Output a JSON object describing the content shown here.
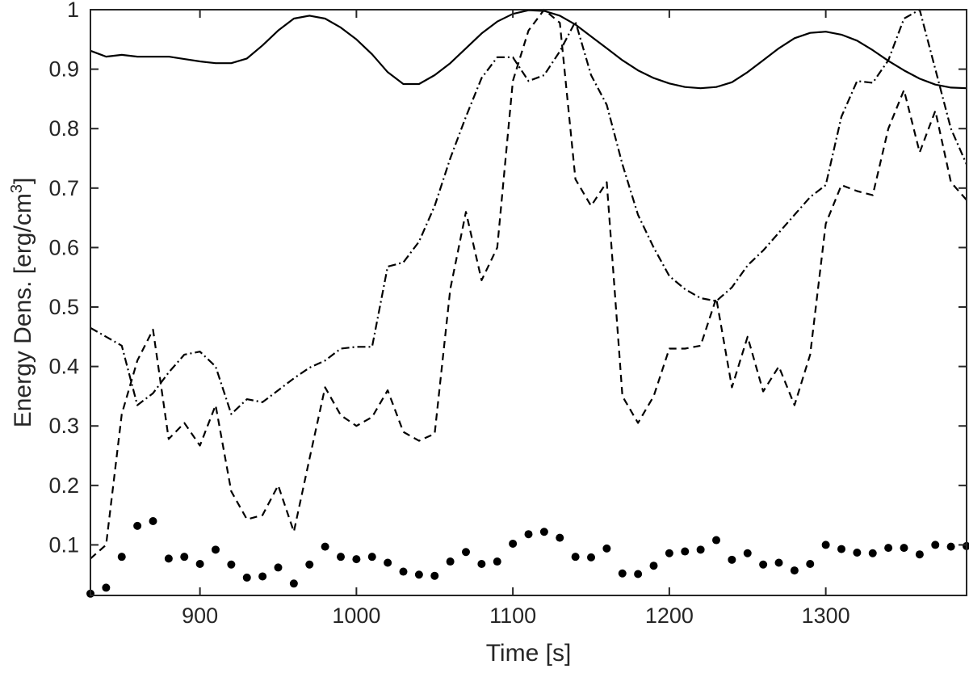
{
  "chart_data": {
    "type": "line",
    "xlabel": "Time [s]",
    "ylabel_prefix": "Energy Dens. [erg/cm",
    "ylabel_sup": "3",
    "ylabel_suffix": "]",
    "xlim": [
      830,
      1390
    ],
    "ylim": [
      0.015,
      1
    ],
    "xticks": [
      900,
      1000,
      1100,
      1200,
      1300
    ],
    "xtick_labels": [
      "900",
      "1000",
      "1100",
      "1200",
      "1300"
    ],
    "yticks": [
      0.1,
      0.2,
      0.3,
      0.4,
      0.5,
      0.6,
      0.7,
      0.8,
      0.9,
      1
    ],
    "ytick_labels": [
      "0.1",
      "0.2",
      "0.3",
      "0.4",
      "0.5",
      "0.6",
      "0.7",
      "0.8",
      "0.9",
      "1"
    ],
    "grid": false,
    "legend": "none",
    "series": [
      {
        "style": "solid",
        "color": "#000000",
        "x": [
          830,
          840,
          850,
          860,
          870,
          880,
          890,
          900,
          910,
          920,
          930,
          940,
          950,
          960,
          970,
          980,
          990,
          1000,
          1010,
          1020,
          1030,
          1040,
          1050,
          1060,
          1070,
          1080,
          1090,
          1100,
          1110,
          1120,
          1130,
          1140,
          1150,
          1160,
          1170,
          1180,
          1190,
          1200,
          1210,
          1220,
          1230,
          1240,
          1250,
          1260,
          1270,
          1280,
          1290,
          1300,
          1310,
          1320,
          1330,
          1340,
          1350,
          1360,
          1370,
          1380,
          1390
        ],
        "y": [
          0.931,
          0.921,
          0.924,
          0.921,
          0.921,
          0.921,
          0.917,
          0.913,
          0.91,
          0.91,
          0.918,
          0.94,
          0.965,
          0.985,
          0.99,
          0.985,
          0.97,
          0.95,
          0.925,
          0.895,
          0.875,
          0.875,
          0.89,
          0.91,
          0.935,
          0.96,
          0.98,
          0.993,
          0.999,
          0.998,
          0.99,
          0.975,
          0.955,
          0.935,
          0.915,
          0.898,
          0.885,
          0.876,
          0.87,
          0.868,
          0.87,
          0.878,
          0.895,
          0.915,
          0.935,
          0.952,
          0.961,
          0.963,
          0.958,
          0.948,
          0.932,
          0.914,
          0.898,
          0.884,
          0.874,
          0.869,
          0.868
        ]
      },
      {
        "style": "dashed",
        "color": "#000000",
        "x": [
          830,
          840,
          850,
          860,
          870,
          880,
          890,
          900,
          910,
          920,
          930,
          940,
          950,
          960,
          970,
          980,
          990,
          1000,
          1010,
          1020,
          1030,
          1040,
          1050,
          1060,
          1070,
          1080,
          1090,
          1100,
          1110,
          1120,
          1130,
          1140,
          1150,
          1160,
          1170,
          1180,
          1190,
          1200,
          1210,
          1220,
          1230,
          1240,
          1250,
          1260,
          1270,
          1280,
          1290,
          1300,
          1310,
          1320,
          1330,
          1340,
          1350,
          1360,
          1370,
          1380,
          1390
        ],
        "y": [
          0.077,
          0.1,
          0.32,
          0.41,
          0.462,
          0.278,
          0.305,
          0.267,
          0.335,
          0.19,
          0.143,
          0.15,
          0.2,
          0.122,
          0.245,
          0.365,
          0.318,
          0.3,
          0.315,
          0.36,
          0.29,
          0.275,
          0.287,
          0.53,
          0.66,
          0.545,
          0.6,
          0.88,
          0.965,
          1.0,
          0.978,
          0.715,
          0.67,
          0.71,
          0.35,
          0.305,
          0.35,
          0.43,
          0.43,
          0.435,
          0.515,
          0.365,
          0.45,
          0.358,
          0.4,
          0.335,
          0.42,
          0.64,
          0.705,
          0.695,
          0.688,
          0.8,
          0.865,
          0.76,
          0.83,
          0.71,
          0.68
        ]
      },
      {
        "style": "dashdot",
        "color": "#000000",
        "x": [
          830,
          840,
          850,
          860,
          870,
          880,
          890,
          900,
          910,
          920,
          930,
          940,
          950,
          960,
          970,
          980,
          990,
          1000,
          1010,
          1020,
          1030,
          1040,
          1050,
          1060,
          1070,
          1080,
          1090,
          1100,
          1110,
          1120,
          1130,
          1140,
          1150,
          1160,
          1170,
          1180,
          1190,
          1200,
          1210,
          1220,
          1230,
          1240,
          1250,
          1260,
          1270,
          1280,
          1290,
          1300,
          1310,
          1320,
          1330,
          1340,
          1350,
          1360,
          1370,
          1380,
          1390
        ],
        "y": [
          0.465,
          0.45,
          0.435,
          0.335,
          0.355,
          0.39,
          0.42,
          0.425,
          0.4,
          0.32,
          0.345,
          0.34,
          0.36,
          0.38,
          0.398,
          0.41,
          0.43,
          0.433,
          0.433,
          0.568,
          0.575,
          0.61,
          0.67,
          0.75,
          0.82,
          0.885,
          0.92,
          0.92,
          0.88,
          0.89,
          0.93,
          0.98,
          0.89,
          0.84,
          0.74,
          0.655,
          0.6,
          0.552,
          0.53,
          0.515,
          0.51,
          0.533,
          0.57,
          0.595,
          0.625,
          0.655,
          0.685,
          0.705,
          0.82,
          0.88,
          0.877,
          0.915,
          0.985,
          1.0,
          0.9,
          0.8,
          0.74
        ]
      },
      {
        "style": "dots",
        "color": "#000000",
        "x": [
          830,
          840,
          850,
          860,
          870,
          880,
          890,
          900,
          910,
          920,
          930,
          940,
          950,
          960,
          970,
          980,
          990,
          1000,
          1010,
          1020,
          1030,
          1040,
          1050,
          1060,
          1070,
          1080,
          1090,
          1100,
          1110,
          1120,
          1130,
          1140,
          1150,
          1160,
          1170,
          1180,
          1190,
          1200,
          1210,
          1220,
          1230,
          1240,
          1250,
          1260,
          1270,
          1280,
          1290,
          1300,
          1310,
          1320,
          1330,
          1340,
          1350,
          1360,
          1370,
          1380,
          1390
        ],
        "y": [
          0.018,
          0.028,
          0.08,
          0.132,
          0.14,
          0.077,
          0.08,
          0.068,
          0.092,
          0.067,
          0.045,
          0.047,
          0.062,
          0.035,
          0.067,
          0.097,
          0.08,
          0.076,
          0.08,
          0.07,
          0.055,
          0.05,
          0.048,
          0.072,
          0.088,
          0.068,
          0.072,
          0.102,
          0.118,
          0.122,
          0.112,
          0.08,
          0.079,
          0.094,
          0.052,
          0.051,
          0.065,
          0.086,
          0.089,
          0.092,
          0.108,
          0.075,
          0.086,
          0.067,
          0.07,
          0.057,
          0.068,
          0.1,
          0.093,
          0.087,
          0.086,
          0.095,
          0.095,
          0.084,
          0.1,
          0.097,
          0.098
        ]
      }
    ]
  }
}
